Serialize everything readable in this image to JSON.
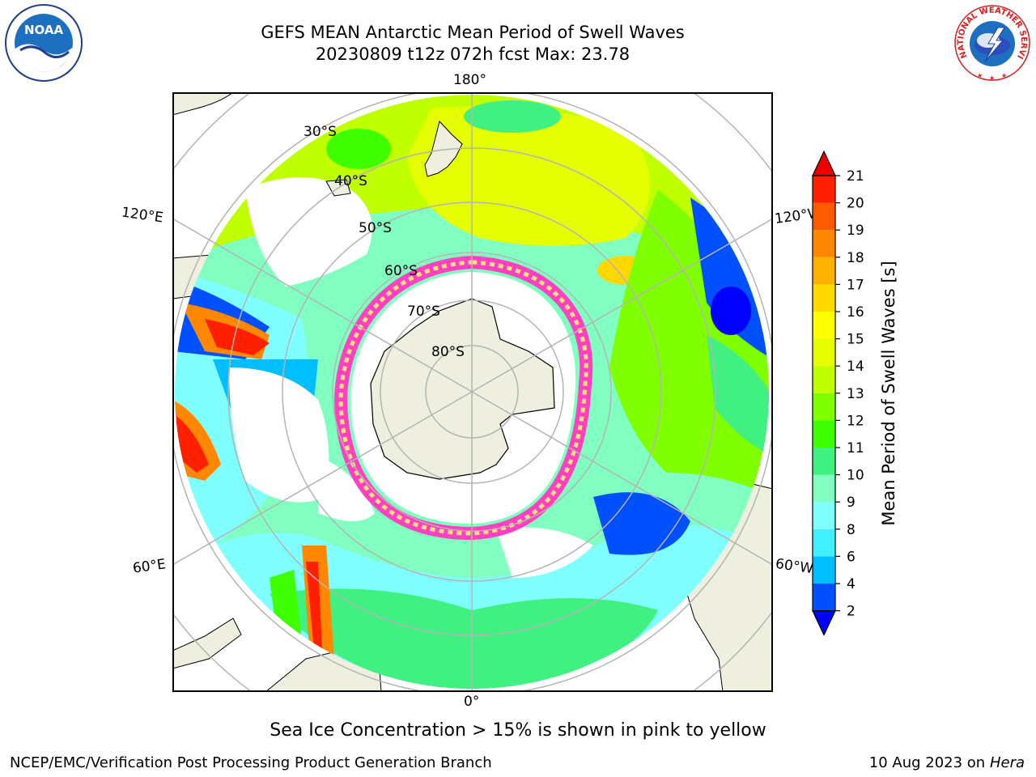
{
  "header": {
    "title_line1": "GEFS MEAN Antarctic Mean Period of Swell Waves",
    "title_line2": "20230809 t12z 072h fcst   Max: 23.78"
  },
  "map": {
    "projection": "south-polar-stereographic",
    "longitude_labels": {
      "top": "180°",
      "bottom": "0°",
      "left_upper": "120°E",
      "left_lower": "60°E",
      "right_upper": "120°W",
      "right_lower": "60°W"
    },
    "latitude_labels": [
      "30°S",
      "40°S",
      "50°S",
      "60°S",
      "70°S",
      "80°S"
    ],
    "colors": {
      "land": "#efefdf",
      "no_data": "#ffffff",
      "gridline": "#b4b4b4",
      "sea_ice_low": "#ff40c0",
      "sea_ice_high": "#ffe080"
    }
  },
  "colorbar": {
    "label": "Mean Period of Swell Waves [s]",
    "ticks": [
      "2",
      "4",
      "6",
      "8",
      "9",
      "10",
      "11",
      "12",
      "13",
      "14",
      "15",
      "16",
      "17",
      "18",
      "19",
      "20",
      "21"
    ],
    "under_color": "#0000ff",
    "over_color": "#ee0000",
    "colors": [
      "#0050ff",
      "#00bfff",
      "#40f0ff",
      "#80ffff",
      "#80ffc0",
      "#40f080",
      "#40ff00",
      "#80ff00",
      "#c0ff00",
      "#e6ff00",
      "#ffff00",
      "#ffd800",
      "#ffb000",
      "#ff8800",
      "#ff5a00",
      "#ff2000"
    ]
  },
  "logos": {
    "noaa": "NOAA",
    "nws": "NATIONAL WEATHER SERVICE"
  },
  "notes": {
    "sea_ice": "Sea Ice Concentration > 15% is shown in pink to yellow"
  },
  "footer": {
    "left": "NCEP/EMC/Verification Post Processing Product Generation Branch",
    "date": "10 Aug 2023 on",
    "host": "Hera"
  }
}
